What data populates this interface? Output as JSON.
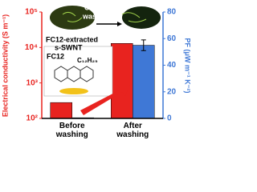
{
  "chart_data": {
    "type": "bar",
    "categories": [
      "Before washing",
      "After washing"
    ],
    "series": [
      {
        "name": "Electrical conductivity",
        "color": "#e8231f",
        "values": [
          280,
          13000
        ]
      },
      {
        "name": "PF",
        "color": "#3f78d6",
        "axis": "y2",
        "values": [
          0.5,
          55
        ],
        "errors": [
          null,
          4
        ]
      }
    ],
    "ylabel": "Electrical conductivity (S m⁻¹)",
    "y2label": "PF (μW m⁻¹ K⁻²)",
    "log_y": true,
    "ylim": [
      100,
      100000
    ],
    "yticks": [
      {
        "value": 100,
        "label": "10²"
      },
      {
        "value": 1000,
        "label": "10³"
      },
      {
        "value": 10000,
        "label": "10⁴"
      },
      {
        "value": 100000,
        "label": "10⁵"
      }
    ],
    "y2lim": [
      0,
      80
    ],
    "y2ticks": [
      0,
      20,
      40,
      60,
      80
    ],
    "annotations": [
      "CH₂Cl₂",
      "washing",
      "FC12-extracted",
      "s-SWNT",
      "FC12",
      "C₁₂H₂₅"
    ]
  }
}
